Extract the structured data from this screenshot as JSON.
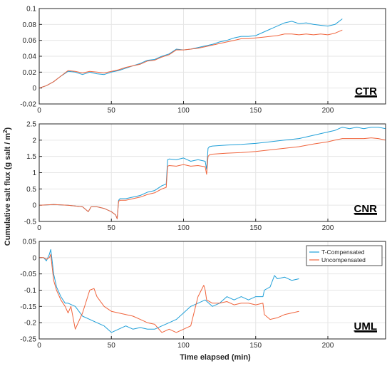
{
  "figure": {
    "xlabel": "Time elapsed (min)",
    "ylabel": "Cumulative salt flux (g salt / m",
    "ylabel_sup": "2",
    "ylabel_close": ")",
    "colors": {
      "t_comp": "#1f9fd8",
      "uncomp": "#f0643c",
      "grid": "#e6e6e6",
      "axis": "#262626"
    }
  },
  "chart_data": [
    {
      "type": "line",
      "panel_label": "CTR",
      "xlim": [
        0,
        240
      ],
      "ylim": [
        -0.02,
        0.1
      ],
      "xticks": [
        "0",
        "50",
        "100",
        "150",
        "200"
      ],
      "yticks": [
        "-0.02",
        "0",
        "0.02",
        "0.04",
        "0.06",
        "0.08",
        "0.1"
      ],
      "grid": true,
      "legend": null,
      "series": [
        {
          "key": "t_comp",
          "x": [
            0,
            5,
            10,
            15,
            20,
            25,
            30,
            35,
            40,
            45,
            50,
            55,
            60,
            65,
            70,
            75,
            80,
            85,
            90,
            95,
            100,
            105,
            110,
            115,
            120,
            125,
            130,
            135,
            140,
            145,
            150,
            155,
            160,
            165,
            170,
            175,
            180,
            185,
            190,
            195,
            200,
            205,
            210
          ],
          "y": [
            0,
            0.003,
            0.008,
            0.015,
            0.021,
            0.02,
            0.017,
            0.02,
            0.018,
            0.017,
            0.02,
            0.022,
            0.025,
            0.028,
            0.031,
            0.035,
            0.036,
            0.04,
            0.043,
            0.049,
            0.048,
            0.049,
            0.051,
            0.053,
            0.055,
            0.058,
            0.06,
            0.063,
            0.065,
            0.065,
            0.066,
            0.07,
            0.074,
            0.078,
            0.082,
            0.084,
            0.081,
            0.082,
            0.08,
            0.079,
            0.078,
            0.08,
            0.087
          ]
        },
        {
          "key": "uncomp",
          "x": [
            0,
            5,
            10,
            15,
            20,
            25,
            30,
            35,
            40,
            45,
            50,
            55,
            60,
            65,
            70,
            75,
            80,
            85,
            90,
            95,
            100,
            105,
            110,
            115,
            120,
            125,
            130,
            135,
            140,
            145,
            150,
            155,
            160,
            165,
            170,
            175,
            180,
            185,
            190,
            195,
            200,
            205,
            210
          ],
          "y": [
            0,
            0.003,
            0.008,
            0.015,
            0.022,
            0.021,
            0.019,
            0.021,
            0.02,
            0.019,
            0.021,
            0.023,
            0.026,
            0.028,
            0.03,
            0.034,
            0.035,
            0.039,
            0.042,
            0.048,
            0.048,
            0.049,
            0.05,
            0.052,
            0.054,
            0.056,
            0.058,
            0.06,
            0.062,
            0.062,
            0.063,
            0.064,
            0.065,
            0.066,
            0.068,
            0.068,
            0.067,
            0.068,
            0.067,
            0.068,
            0.067,
            0.069,
            0.073
          ]
        }
      ]
    },
    {
      "type": "line",
      "panel_label": "CNR",
      "xlim": [
        0,
        240
      ],
      "ylim": [
        -0.5,
        2.5
      ],
      "xticks": [
        "0",
        "50",
        "100",
        "150",
        "200"
      ],
      "yticks": [
        "-0.5",
        "0",
        "0.5",
        "1",
        "1.5",
        "2",
        "2.5"
      ],
      "grid": true,
      "legend": null,
      "series": [
        {
          "key": "t_comp",
          "x": [
            0,
            10,
            20,
            30,
            34,
            36,
            40,
            45,
            50,
            53,
            54,
            55,
            56,
            60,
            65,
            70,
            75,
            80,
            85,
            88,
            89,
            90,
            95,
            100,
            105,
            110,
            115,
            116,
            117,
            118,
            120,
            130,
            140,
            150,
            160,
            170,
            180,
            190,
            200,
            205,
            210,
            215,
            220,
            225,
            230,
            235,
            240
          ],
          "y": [
            0,
            0.02,
            0,
            -0.05,
            -0.2,
            -0.05,
            -0.05,
            -0.1,
            -0.2,
            -0.3,
            -0.42,
            0.15,
            0.2,
            0.2,
            0.25,
            0.3,
            0.4,
            0.45,
            0.6,
            0.65,
            1.4,
            1.42,
            1.4,
            1.45,
            1.35,
            1.4,
            1.35,
            1.1,
            1.75,
            1.8,
            1.82,
            1.85,
            1.87,
            1.9,
            1.95,
            2.0,
            2.05,
            2.15,
            2.25,
            2.3,
            2.4,
            2.35,
            2.4,
            2.35,
            2.4,
            2.4,
            2.35
          ]
        },
        {
          "key": "uncomp",
          "x": [
            0,
            10,
            20,
            30,
            34,
            36,
            40,
            45,
            50,
            53,
            54,
            55,
            56,
            60,
            65,
            70,
            75,
            80,
            85,
            88,
            89,
            90,
            95,
            100,
            105,
            110,
            115,
            116,
            117,
            118,
            120,
            130,
            140,
            150,
            160,
            170,
            180,
            190,
            200,
            205,
            210,
            215,
            220,
            225,
            230,
            235,
            240
          ],
          "y": [
            0,
            0.02,
            0,
            -0.05,
            -0.2,
            -0.05,
            -0.05,
            -0.1,
            -0.2,
            -0.3,
            -0.42,
            0.12,
            0.15,
            0.15,
            0.2,
            0.25,
            0.33,
            0.38,
            0.5,
            0.55,
            1.2,
            1.22,
            1.2,
            1.25,
            1.2,
            1.22,
            1.18,
            0.95,
            1.5,
            1.55,
            1.57,
            1.6,
            1.62,
            1.65,
            1.7,
            1.75,
            1.8,
            1.88,
            1.95,
            2.0,
            2.05,
            2.05,
            2.05,
            2.05,
            2.07,
            2.05,
            2.0
          ]
        }
      ]
    },
    {
      "type": "line",
      "panel_label": "UML",
      "xlim": [
        0,
        240
      ],
      "ylim": [
        -0.25,
        0.05
      ],
      "xticks": [
        "0",
        "50",
        "100",
        "150",
        "200"
      ],
      "yticks": [
        "-0.25",
        "-0.2",
        "-0.15",
        "-0.1",
        "-0.05",
        "0",
        "0.05"
      ],
      "grid": true,
      "legend": "top-right",
      "series": [
        {
          "key": "t_comp",
          "name": "T-Compensated",
          "x": [
            0,
            3,
            5,
            7,
            8,
            9,
            10,
            12,
            15,
            18,
            20,
            25,
            30,
            35,
            40,
            45,
            50,
            55,
            60,
            65,
            70,
            75,
            80,
            85,
            90,
            95,
            100,
            105,
            110,
            115,
            120,
            125,
            130,
            135,
            140,
            145,
            150,
            155,
            156,
            160,
            163,
            165,
            170,
            175,
            180
          ],
          "y": [
            0,
            0,
            -0.01,
            0.01,
            0.025,
            -0.01,
            -0.05,
            -0.09,
            -0.12,
            -0.14,
            -0.14,
            -0.15,
            -0.18,
            -0.19,
            -0.2,
            -0.21,
            -0.23,
            -0.22,
            -0.21,
            -0.22,
            -0.215,
            -0.22,
            -0.22,
            -0.21,
            -0.2,
            -0.19,
            -0.17,
            -0.15,
            -0.14,
            -0.13,
            -0.15,
            -0.14,
            -0.12,
            -0.13,
            -0.12,
            -0.13,
            -0.12,
            -0.12,
            -0.1,
            -0.09,
            -0.055,
            -0.065,
            -0.06,
            -0.07,
            -0.065
          ]
        },
        {
          "key": "uncomp",
          "name": "Uncompensated",
          "x": [
            0,
            3,
            5,
            7,
            8,
            9,
            10,
            12,
            15,
            18,
            20,
            22,
            25,
            30,
            35,
            38,
            40,
            45,
            50,
            55,
            60,
            65,
            70,
            75,
            80,
            85,
            90,
            95,
            100,
            105,
            110,
            114,
            115,
            116,
            120,
            125,
            130,
            135,
            140,
            145,
            150,
            155,
            156,
            160,
            165,
            170,
            175,
            180
          ],
          "y": [
            0,
            0,
            -0.005,
            0,
            0.01,
            -0.03,
            -0.07,
            -0.1,
            -0.13,
            -0.15,
            -0.17,
            -0.15,
            -0.22,
            -0.17,
            -0.1,
            -0.095,
            -0.12,
            -0.15,
            -0.165,
            -0.17,
            -0.175,
            -0.18,
            -0.19,
            -0.2,
            -0.205,
            -0.23,
            -0.22,
            -0.23,
            -0.22,
            -0.21,
            -0.12,
            -0.085,
            -0.1,
            -0.13,
            -0.14,
            -0.14,
            -0.135,
            -0.145,
            -0.14,
            -0.14,
            -0.145,
            -0.14,
            -0.175,
            -0.19,
            -0.185,
            -0.175,
            -0.17,
            -0.165
          ]
        }
      ]
    }
  ]
}
